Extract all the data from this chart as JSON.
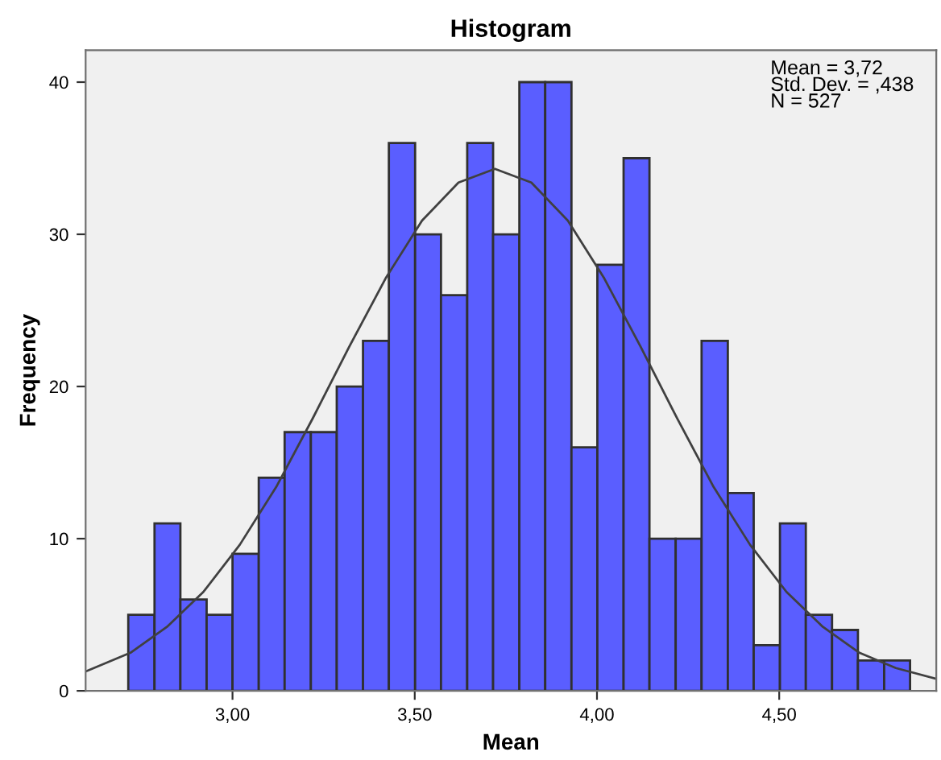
{
  "chart_data": {
    "type": "histogram",
    "title": "Histogram",
    "xlabel": "Mean",
    "ylabel": "Frequency",
    "bins": [
      2.714,
      2.786,
      2.857,
      2.929,
      3.0,
      3.072,
      3.143,
      3.215,
      3.286,
      3.358,
      3.429,
      3.501,
      3.572,
      3.644,
      3.715,
      3.787,
      3.858,
      3.93,
      4.001,
      4.073,
      4.144,
      4.216,
      4.287,
      4.359,
      4.43,
      4.502,
      4.573,
      4.645,
      4.716,
      4.788,
      4.859
    ],
    "values": [
      5,
      11,
      6,
      5,
      9,
      14,
      17,
      17,
      20,
      23,
      36,
      30,
      26,
      36,
      30,
      40,
      40,
      16,
      28,
      35,
      10,
      10,
      23,
      13,
      3,
      11,
      5,
      4,
      2,
      2
    ],
    "color": "#5a5eff",
    "series": [
      {
        "type": "line",
        "color": "#404040",
        "x": [
          2.6,
          2.72,
          2.82,
          2.92,
          3.02,
          3.12,
          3.22,
          3.32,
          3.42,
          3.52,
          3.62,
          3.72,
          3.82,
          3.92,
          4.02,
          4.12,
          4.22,
          4.32,
          4.42,
          4.52,
          4.62,
          4.72,
          4.82,
          4.93
        ],
        "values": [
          1.3,
          2.5,
          4.2,
          6.5,
          9.6,
          13.4,
          17.9,
          22.6,
          27.1,
          30.9,
          33.4,
          34.3,
          33.4,
          30.9,
          27.1,
          22.6,
          17.9,
          13.4,
          9.6,
          6.5,
          4.2,
          2.5,
          1.5,
          0.8
        ]
      }
    ],
    "xlim": [
      2.597,
      4.931
    ],
    "ylim": [
      0,
      42.1
    ],
    "xticks": [
      {
        "value": 3.0,
        "label": "3,00"
      },
      {
        "value": 3.5,
        "label": "3,50"
      },
      {
        "value": 4.0,
        "label": "4,00"
      },
      {
        "value": 4.5,
        "label": "4,50"
      }
    ],
    "yticks": [
      0,
      10,
      20,
      30,
      40
    ],
    "annotations": [
      "Mean = 3,72\nStd. Dev. = ,438\nN = 527"
    ],
    "grid": false,
    "legend": false
  }
}
